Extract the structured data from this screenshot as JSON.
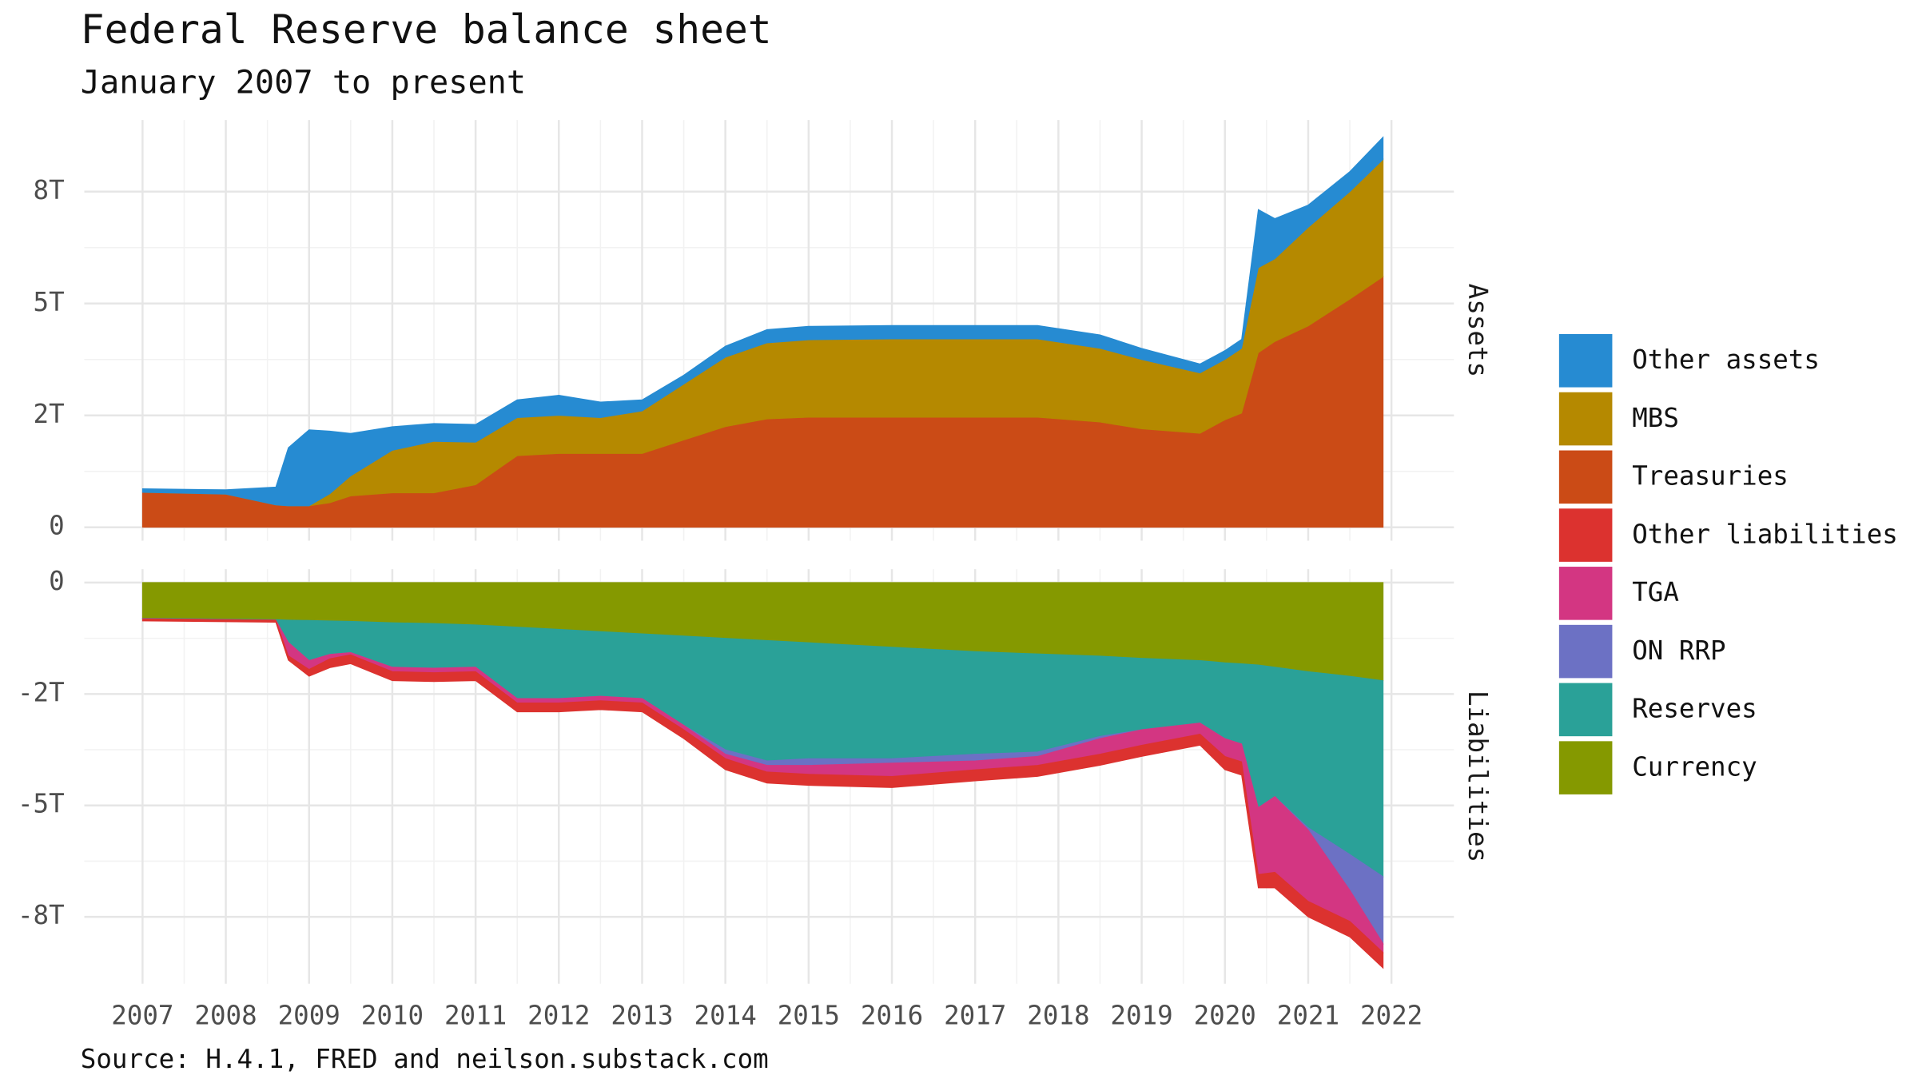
{
  "chart_data": [
    {
      "type": "area",
      "title": "Federal Reserve balance sheet",
      "subtitle": "January 2007 to present",
      "caption": "Source: H.4.1, FRED and neilson.substack.com",
      "facet": "Assets",
      "x": [
        2007.0,
        2008.0,
        2008.6,
        2008.75,
        2009.0,
        2009.25,
        2009.5,
        2010.0,
        2010.5,
        2011.0,
        2011.5,
        2012.0,
        2012.5,
        2013.0,
        2013.5,
        2014.0,
        2014.5,
        2015.0,
        2016.0,
        2017.0,
        2017.75,
        2018.5,
        2019.0,
        2019.7,
        2020.0,
        2020.2,
        2020.4,
        2020.6,
        2021.0,
        2021.5,
        2021.9
      ],
      "xlim": [
        2006.3,
        2022.75
      ],
      "xticks": [
        2007,
        2008,
        2009,
        2010,
        2011,
        2012,
        2013,
        2014,
        2015,
        2016,
        2017,
        2018,
        2019,
        2020,
        2021,
        2022
      ],
      "ylim": [
        -0.3,
        9.1
      ],
      "yticks": [
        0,
        {
          "value": 2.5,
          "label": "2T"
        },
        {
          "value": 5,
          "label": "5T"
        },
        {
          "value": 7.5,
          "label": "8T"
        }
      ],
      "grid": true,
      "series": [
        {
          "name": "Treasuries",
          "color": "#cb4b16",
          "values": [
            0.78,
            0.74,
            0.5,
            0.48,
            0.48,
            0.55,
            0.7,
            0.77,
            0.77,
            0.95,
            1.6,
            1.65,
            1.65,
            1.65,
            1.95,
            2.25,
            2.42,
            2.46,
            2.46,
            2.46,
            2.46,
            2.35,
            2.2,
            2.1,
            2.4,
            2.55,
            3.9,
            4.15,
            4.5,
            5.1,
            5.6
          ]
        },
        {
          "name": "MBS",
          "color": "#b58900",
          "values": [
            0,
            0,
            0,
            0,
            0,
            0.2,
            0.45,
            0.95,
            1.15,
            0.95,
            0.85,
            0.85,
            0.8,
            0.95,
            1.25,
            1.55,
            1.7,
            1.73,
            1.75,
            1.75,
            1.75,
            1.65,
            1.55,
            1.35,
            1.35,
            1.45,
            1.9,
            1.85,
            2.2,
            2.4,
            2.62
          ]
        },
        {
          "name": "Other assets",
          "color": "#268bd2",
          "values": [
            0.08,
            0.1,
            0.4,
            1.3,
            1.7,
            1.4,
            0.95,
            0.53,
            0.4,
            0.4,
            0.4,
            0.45,
            0.35,
            0.25,
            0.2,
            0.25,
            0.3,
            0.3,
            0.3,
            0.3,
            0.3,
            0.3,
            0.25,
            0.2,
            0.2,
            0.2,
            1.3,
            0.9,
            0.5,
            0.45,
            0.5
          ]
        }
      ]
    },
    {
      "type": "area",
      "facet": "Liabilities",
      "x": [
        2007.0,
        2008.0,
        2008.6,
        2008.75,
        2009.0,
        2009.25,
        2009.5,
        2010.0,
        2010.5,
        2011.0,
        2011.5,
        2012.0,
        2012.5,
        2013.0,
        2013.5,
        2014.0,
        2014.5,
        2015.0,
        2016.0,
        2017.0,
        2017.75,
        2018.5,
        2019.0,
        2019.7,
        2020.0,
        2020.2,
        2020.4,
        2020.6,
        2021.0,
        2021.5,
        2021.9
      ],
      "xlim": [
        2006.3,
        2022.75
      ],
      "xticks": [
        2007,
        2008,
        2009,
        2010,
        2011,
        2012,
        2013,
        2014,
        2015,
        2016,
        2017,
        2018,
        2019,
        2020,
        2021,
        2022
      ],
      "ylim": [
        -9.0,
        0.3
      ],
      "yticks": [
        {
          "value": -7.5,
          "label": "-8T"
        },
        {
          "value": -5,
          "label": "-5T"
        },
        {
          "value": -2.5,
          "label": "-2T"
        },
        0
      ],
      "grid": true,
      "series": [
        {
          "name": "Currency",
          "color": "#859900",
          "values": [
            -0.8,
            -0.82,
            -0.83,
            -0.84,
            -0.85,
            -0.86,
            -0.87,
            -0.9,
            -0.92,
            -0.95,
            -1.0,
            -1.05,
            -1.1,
            -1.15,
            -1.2,
            -1.25,
            -1.3,
            -1.35,
            -1.45,
            -1.55,
            -1.6,
            -1.65,
            -1.7,
            -1.75,
            -1.8,
            -1.82,
            -1.85,
            -1.9,
            -2.0,
            -2.1,
            -2.2
          ]
        },
        {
          "name": "Reserves",
          "color": "#2aa198",
          "values": [
            -0.01,
            -0.01,
            -0.01,
            -0.5,
            -0.9,
            -0.75,
            -0.7,
            -1.0,
            -1.0,
            -0.95,
            -1.6,
            -1.55,
            -1.45,
            -1.45,
            -2.0,
            -2.5,
            -2.7,
            -2.6,
            -2.5,
            -2.3,
            -2.2,
            -1.8,
            -1.6,
            -1.4,
            -1.7,
            -1.8,
            -3.2,
            -2.9,
            -3.5,
            -4.0,
            -4.4
          ]
        },
        {
          "name": "ON RRP",
          "color": "#6c71c4",
          "values": [
            0,
            0,
            0,
            0,
            0,
            0,
            0,
            0,
            0,
            0,
            0,
            0,
            0,
            0,
            0,
            -0.1,
            -0.1,
            -0.15,
            -0.1,
            -0.15,
            -0.1,
            -0.05,
            0,
            0,
            0,
            0,
            0,
            0,
            -0.05,
            -0.8,
            -1.5
          ]
        },
        {
          "name": "TGA",
          "color": "#d33682",
          "values": [
            0,
            0,
            0,
            -0.3,
            -0.2,
            -0.1,
            -0.05,
            -0.1,
            -0.1,
            -0.1,
            -0.1,
            -0.1,
            -0.1,
            -0.1,
            -0.1,
            -0.1,
            -0.15,
            -0.2,
            -0.3,
            -0.2,
            -0.2,
            -0.35,
            -0.35,
            -0.25,
            -0.4,
            -0.4,
            -1.5,
            -1.7,
            -1.6,
            -0.7,
            -0.2
          ]
        },
        {
          "name": "Other liabilities",
          "color": "#dc322f",
          "values": [
            -0.05,
            -0.05,
            -0.05,
            -0.1,
            -0.15,
            -0.2,
            -0.2,
            -0.2,
            -0.2,
            -0.2,
            -0.2,
            -0.2,
            -0.2,
            -0.2,
            -0.2,
            -0.25,
            -0.25,
            -0.25,
            -0.25,
            -0.25,
            -0.25,
            -0.25,
            -0.25,
            -0.25,
            -0.3,
            -0.3,
            -0.3,
            -0.35,
            -0.35,
            -0.35,
            -0.35
          ]
        }
      ]
    }
  ]
}
